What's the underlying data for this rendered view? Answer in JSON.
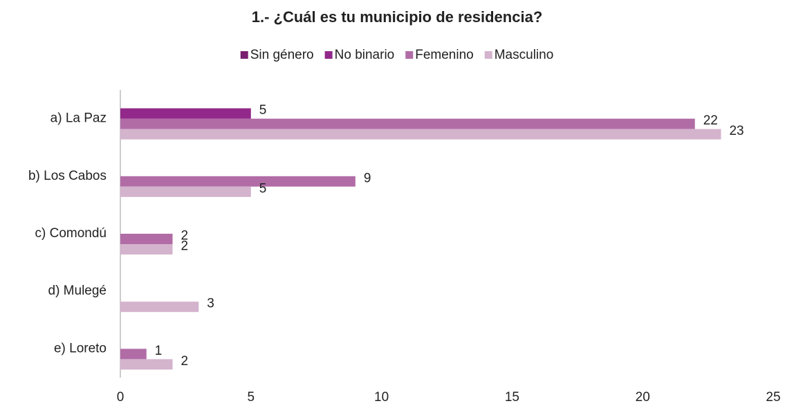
{
  "chart_data": {
    "type": "bar",
    "orientation": "horizontal",
    "title": "1.- ¿Cuál es tu municipio de residencia?",
    "categories": [
      "a) La Paz",
      "b) Los Cabos",
      "c) Comondú",
      "d) Mulegé",
      "e) Loreto"
    ],
    "series": [
      {
        "name": "Sin género",
        "color": "#7a1f6f",
        "values": [
          null,
          null,
          null,
          null,
          null
        ]
      },
      {
        "name": "No binario",
        "color": "#92288a",
        "values": [
          5,
          null,
          null,
          null,
          null
        ]
      },
      {
        "name": "Femenino",
        "color": "#b16ca6",
        "values": [
          22,
          9,
          2,
          null,
          1
        ]
      },
      {
        "name": "Masculino",
        "color": "#d4b3cd",
        "values": [
          23,
          5,
          2,
          3,
          2
        ]
      }
    ],
    "xlim": [
      0,
      25
    ],
    "xticks": [
      0,
      5,
      10,
      15,
      20,
      25
    ],
    "legend": "top"
  }
}
